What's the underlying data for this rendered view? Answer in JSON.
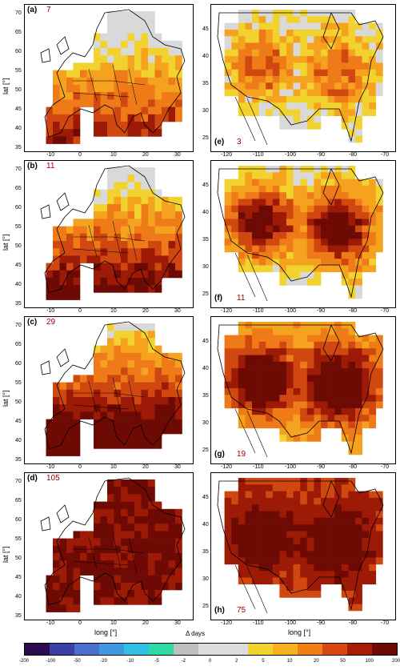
{
  "panels": [
    {
      "id": "a",
      "label": "(a)",
      "count": "7",
      "region": "europe",
      "level": 1
    },
    {
      "id": "b",
      "label": "(b)",
      "count": "11",
      "region": "europe",
      "level": 2
    },
    {
      "id": "c",
      "label": "(c)",
      "count": "29",
      "region": "europe",
      "level": 3
    },
    {
      "id": "d",
      "label": "(d)",
      "count": "105",
      "region": "europe",
      "level": 4
    },
    {
      "id": "e",
      "label": "(e)",
      "count": "3",
      "region": "usa",
      "level": 1
    },
    {
      "id": "f",
      "label": "(f)",
      "count": "11",
      "region": "usa",
      "level": 2
    },
    {
      "id": "g",
      "label": "(g)",
      "count": "19",
      "region": "usa",
      "level": 3
    },
    {
      "id": "h",
      "label": "(h)",
      "count": "75",
      "region": "usa",
      "level": 4
    }
  ],
  "europe_axes": {
    "xticks": [
      "-10",
      "0",
      "10",
      "20",
      "30"
    ],
    "yticks": [
      "35",
      "40",
      "45",
      "50",
      "55",
      "60",
      "65",
      "70"
    ],
    "xlabel": "long [°]",
    "ylabel": "lat [°]"
  },
  "usa_axes": {
    "xticks": [
      "-120",
      "-110",
      "-100",
      "-90",
      "-80",
      "-70"
    ],
    "yticks": [
      "25",
      "30",
      "35",
      "40",
      "45"
    ],
    "xlabel": "long [°]"
  },
  "colorbar": {
    "title": "Δ days",
    "ticks": [
      "-200",
      "-100",
      "-50",
      "-20",
      "-10",
      "-5",
      "-2",
      "0",
      "2",
      "5",
      "10",
      "20",
      "50",
      "100",
      "200"
    ],
    "colors": [
      "#2b0a4f",
      "#3d3fa6",
      "#4a6fd1",
      "#3f97e0",
      "#2fbfe0",
      "#2fd9a6",
      "#bfbfbf",
      "#dcdcdc",
      "#dcdcdc",
      "#f2d22e",
      "#f5b21e",
      "#f07f16",
      "#d84810",
      "#a81c06",
      "#6e0a04"
    ]
  },
  "palette": {
    "grey": "#d9d9d9",
    "yellow": "#f2d22e",
    "orange": "#f5a21e",
    "dorange": "#ee7a18",
    "red": "#d04810",
    "dred": "#9c1a06",
    "maroon": "#6e0a04"
  }
}
